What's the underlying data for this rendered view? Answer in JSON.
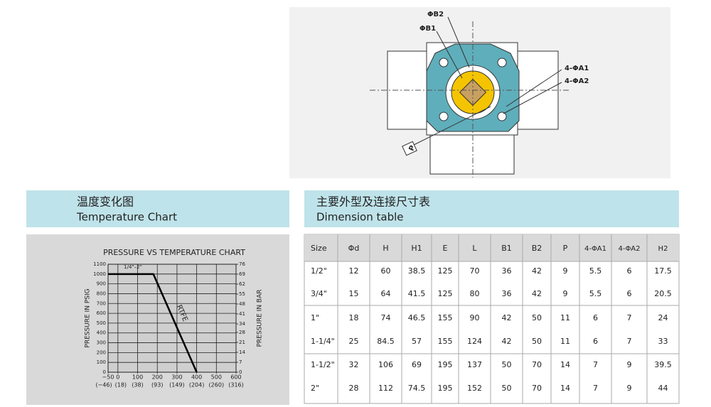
{
  "diagram": {
    "labels": [
      "ΦB2",
      "ΦB1",
      "4-ΦA1",
      "4-ΦA2",
      "P"
    ]
  },
  "left_panel": {
    "title_cn": "温度变化图",
    "title_en": "Temperature Chart"
  },
  "right_panel": {
    "title_cn": "主要外型及连接尺寸表",
    "title_en": "Dimension table"
  },
  "chart_data": {
    "type": "line",
    "title": "PRESSURE VS TEMPERATURE CHART",
    "y_label": "PRESSURE IN PSIG",
    "y2_label": "PRESSURE IN BAR",
    "annotation": "1/4\"–2\"",
    "series": [
      {
        "name": "RTFE",
        "color": "#000000",
        "x": [
          -50,
          180,
          400
        ],
        "values": [
          1000,
          1000,
          0
        ]
      }
    ],
    "xlim": [
      -50,
      600
    ],
    "xticks": [
      {
        "value": -50,
        "label": "−50"
      },
      0,
      100,
      200,
      300,
      400,
      500,
      600
    ],
    "x2ticks": [
      {
        "value": -50,
        "label": "(−46)"
      },
      {
        "value": 0,
        "label": "(18)"
      },
      {
        "value": 100,
        "label": "(38)"
      },
      {
        "value": 200,
        "label": "(93)"
      },
      {
        "value": 300,
        "label": "(149)"
      },
      {
        "value": 400,
        "label": "(204)"
      },
      {
        "value": 500,
        "label": "(260)"
      },
      {
        "value": 600,
        "label": "(316)"
      }
    ],
    "ylim": [
      0,
      1100
    ],
    "yticks": [
      0,
      100,
      200,
      300,
      400,
      500,
      600,
      700,
      800,
      900,
      1000,
      1100
    ],
    "y2lim": [
      0,
      76
    ],
    "y2ticks": [
      0,
      7,
      14,
      21,
      28,
      34,
      41,
      48,
      55,
      62,
      69,
      76
    ],
    "grid": true
  },
  "table": {
    "header": [
      "Size",
      "Φd",
      "H",
      "H1",
      "E",
      "L",
      "B1",
      "B2",
      "P",
      "4-ΦA1",
      "4-ΦA2",
      "H2"
    ],
    "rows": [
      [
        "1/2\"",
        12,
        60,
        38.5,
        125,
        70,
        36,
        42,
        9,
        5.5,
        6,
        17.5
      ],
      [
        "3/4\"",
        15,
        64,
        41.5,
        125,
        80,
        36,
        42,
        9,
        5.5,
        6,
        20.5
      ],
      [
        "1\"",
        18,
        74,
        46.5,
        155,
        90,
        42,
        50,
        11,
        6,
        7,
        24
      ],
      [
        "1-1/4\"",
        25,
        84.5,
        57,
        155,
        124,
        42,
        50,
        11,
        6,
        7,
        33
      ],
      [
        "1-1/2\"",
        32,
        106,
        69,
        195,
        137,
        50,
        70,
        14,
        7,
        9,
        39.5
      ],
      [
        "2\"",
        28,
        112,
        74.5,
        195,
        152,
        50,
        70,
        14,
        7,
        9,
        44
      ]
    ]
  }
}
